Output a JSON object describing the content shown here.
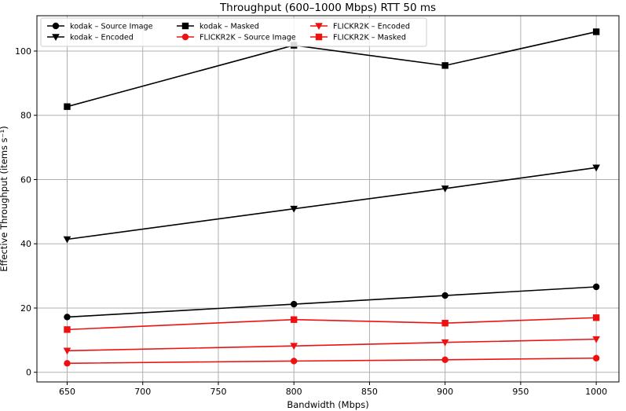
{
  "chart_data": {
    "type": "line",
    "title": "Throughput (600–1000 Mbps)  RTT 50 ms",
    "xlabel": "Bandwidth (Mbps)",
    "ylabel": "Effective Throughput (items s⁻¹)",
    "xlim": [
      630,
      1015
    ],
    "ylim": [
      -3,
      111
    ],
    "xticks": [
      650,
      700,
      750,
      800,
      850,
      900,
      950,
      1000
    ],
    "yticks": [
      0,
      20,
      40,
      60,
      80,
      100
    ],
    "grid": true,
    "legend_position": "top-left",
    "legend_columns": 3,
    "x": [
      650,
      800,
      900,
      1000
    ],
    "series": [
      {
        "name": "kodak – Source Image",
        "color": "#000000",
        "marker": "circle",
        "values": [
          17.2,
          21.2,
          23.9,
          26.6
        ]
      },
      {
        "name": "kodak – Encoded",
        "color": "#000000",
        "marker": "triangle-down",
        "values": [
          41.4,
          50.9,
          57.2,
          63.7
        ]
      },
      {
        "name": "kodak – Masked",
        "color": "#000000",
        "marker": "square",
        "values": [
          82.7,
          101.8,
          95.5,
          106.0
        ]
      },
      {
        "name": "FLICKR2K – Source Image",
        "color": "#ee1111",
        "marker": "circle",
        "values": [
          2.8,
          3.5,
          3.9,
          4.4
        ]
      },
      {
        "name": "FLICKR2K – Encoded",
        "color": "#ee1111",
        "marker": "triangle-down",
        "values": [
          6.7,
          8.2,
          9.3,
          10.3
        ]
      },
      {
        "name": "FLICKR2K – Masked",
        "color": "#ee1111",
        "marker": "square",
        "values": [
          13.3,
          16.4,
          15.3,
          17.0
        ]
      }
    ]
  }
}
